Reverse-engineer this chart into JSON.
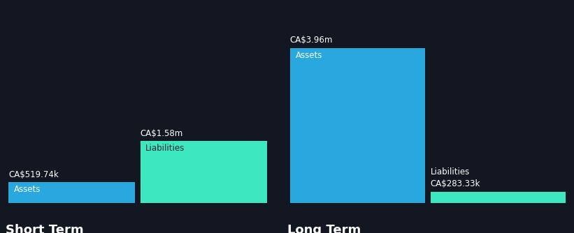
{
  "background_color": "#131722",
  "asset_color": "#29a8e0",
  "liability_color": "#3de8c0",
  "text_color_white": "#ffffff",
  "text_color_dark": "#162032",
  "short_term": {
    "label": "Short Term",
    "assets_value": 519740,
    "assets_label": "CA$519.74k",
    "assets_bar_label": "Assets",
    "liabilities_value": 1580000,
    "liabilities_label": "CA$1.58m",
    "liabilities_bar_label": "Liabilities"
  },
  "long_term": {
    "label": "Long Term",
    "assets_value": 3960000,
    "assets_label": "CA$3.96m",
    "assets_bar_label": "Assets",
    "liabilities_value": 283330,
    "liabilities_label": "CA$283.33k",
    "liabilities_bar_label": "Liabilities"
  },
  "label_fontsize": 8.5,
  "value_fontsize": 8.5,
  "section_label_fontsize": 13,
  "inner_label_fontsize": 8.5
}
